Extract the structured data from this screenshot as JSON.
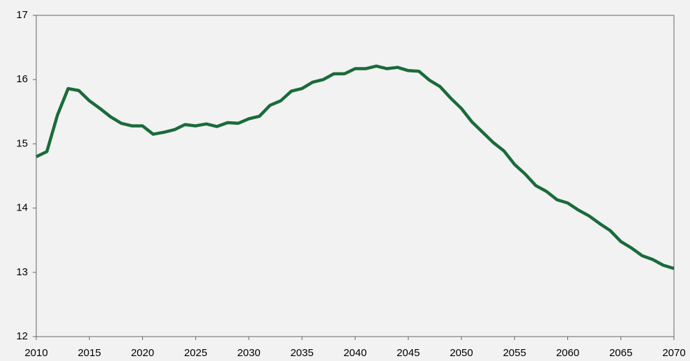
{
  "chart_data": {
    "type": "line",
    "x": [
      2010,
      2011,
      2012,
      2013,
      2014,
      2015,
      2016,
      2017,
      2018,
      2019,
      2020,
      2021,
      2022,
      2023,
      2024,
      2025,
      2026,
      2027,
      2028,
      2029,
      2030,
      2031,
      2032,
      2033,
      2034,
      2035,
      2036,
      2037,
      2038,
      2039,
      2040,
      2041,
      2042,
      2043,
      2044,
      2045,
      2046,
      2047,
      2048,
      2049,
      2050,
      2051,
      2052,
      2053,
      2054,
      2055,
      2056,
      2057,
      2058,
      2059,
      2060,
      2061,
      2062,
      2063,
      2064,
      2065,
      2066,
      2067,
      2068,
      2069,
      2070
    ],
    "series": [
      {
        "color": "#1a6b3a",
        "values": [
          14.8,
          14.88,
          15.45,
          15.86,
          15.83,
          15.67,
          15.55,
          15.42,
          15.32,
          15.28,
          15.28,
          15.15,
          15.18,
          15.22,
          15.3,
          15.28,
          15.31,
          15.27,
          15.33,
          15.32,
          15.39,
          15.43,
          15.6,
          15.67,
          15.82,
          15.86,
          15.96,
          16.0,
          16.09,
          16.09,
          16.17,
          16.17,
          16.21,
          16.17,
          16.19,
          16.14,
          16.13,
          15.99,
          15.89,
          15.71,
          15.55,
          15.34,
          15.18,
          15.02,
          14.89,
          14.68,
          14.53,
          14.35,
          14.26,
          14.13,
          14.08,
          13.97,
          13.88,
          13.76,
          13.65,
          13.48,
          13.38,
          13.26,
          13.2,
          13.11,
          13.06
        ]
      }
    ],
    "xlim": [
      2010,
      2070
    ],
    "xticks": [
      2010,
      2015,
      2020,
      2025,
      2030,
      2035,
      2040,
      2045,
      2050,
      2055,
      2060,
      2065,
      2070
    ],
    "ylim": [
      12,
      17
    ],
    "yticks": [
      12,
      13,
      14,
      15,
      16,
      17
    ]
  }
}
